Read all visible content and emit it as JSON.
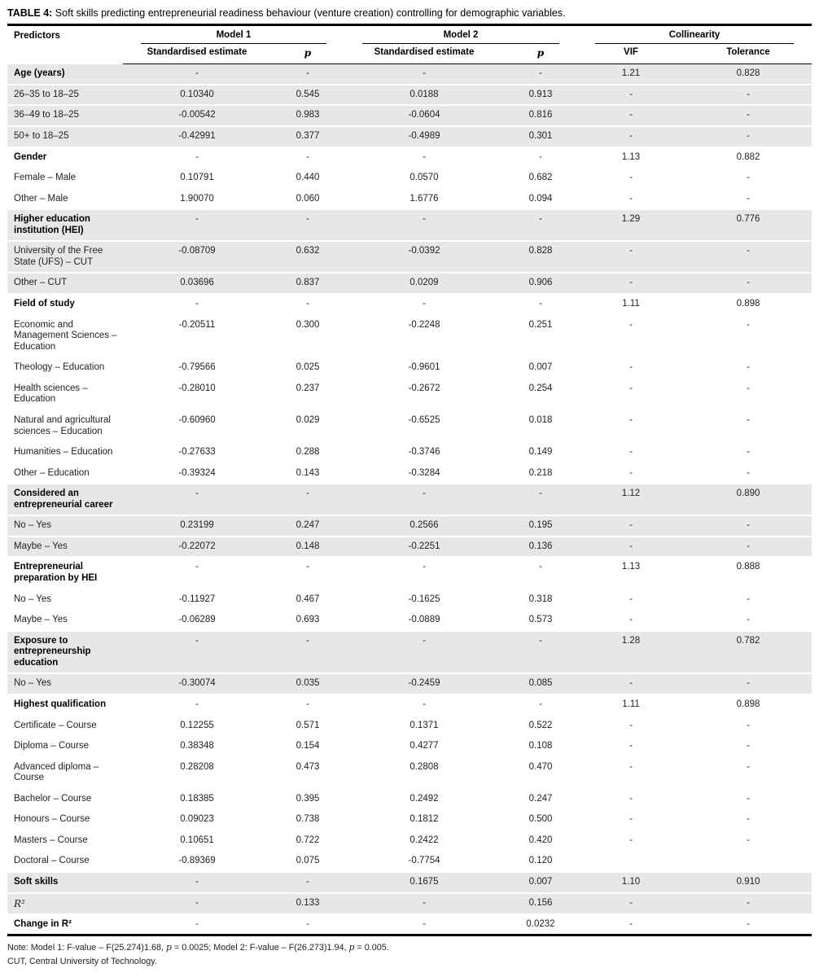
{
  "title": {
    "label": "TABLE 4:",
    "text": " Soft skills predicting entrepreneurial readiness behaviour (venture creation) controlling for demographic variables."
  },
  "table": {
    "predictors_header": "Predictors",
    "groups": {
      "model1": "Model 1",
      "model2": "Model 2",
      "collinearity": "Collinearity"
    },
    "subheaders": {
      "m1_est": "Standardised estimate",
      "m1_p": "p",
      "m2_est": "Standardised estimate",
      "m2_p": "p",
      "vif": "VIF",
      "tolerance": "Tolerance"
    },
    "rows": [
      {
        "predictor": "Age (years)",
        "bold": true,
        "shaded": true,
        "m1_est": "-",
        "m1_p": "-",
        "m2_est": "-",
        "m2_p": "-",
        "vif": "1.21",
        "tol": "0.828"
      },
      {
        "predictor": "26–35 to 18–25",
        "shaded": true,
        "m1_est": "0.10340",
        "m1_p": "0.545",
        "m2_est": "0.0188",
        "m2_p": "0.913",
        "vif": "-",
        "tol": "-"
      },
      {
        "predictor": "36–49 to 18–25",
        "shaded": true,
        "m1_est": "-0.00542",
        "m1_p": "0.983",
        "m2_est": "-0.0604",
        "m2_p": "0.816",
        "vif": "-",
        "tol": "-"
      },
      {
        "predictor": "50+ to 18–25",
        "shaded": true,
        "m1_est": "-0.42991",
        "m1_p": "0.377",
        "m2_est": "-0.4989",
        "m2_p": "0.301",
        "vif": "-",
        "tol": "-"
      },
      {
        "predictor": "Gender",
        "bold": true,
        "m1_est": "-",
        "m1_p": "-",
        "m2_est": "-",
        "m2_p": "-",
        "vif": "1.13",
        "tol": "0.882"
      },
      {
        "predictor": "Female – Male",
        "m1_est": "0.10791",
        "m1_p": "0.440",
        "m2_est": "0.0570",
        "m2_p": "0.682",
        "vif": "-",
        "tol": "-"
      },
      {
        "predictor": "Other – Male",
        "m1_est": "1.90070",
        "m1_p": "0.060",
        "m2_est": "1.6776",
        "m2_p": "0.094",
        "vif": "-",
        "tol": "-"
      },
      {
        "predictor": "Higher education institution (HEI)",
        "bold": true,
        "shaded": true,
        "m1_est": "-",
        "m1_p": "-",
        "m2_est": "-",
        "m2_p": "-",
        "vif": "1.29",
        "tol": "0.776"
      },
      {
        "predictor": "University of the Free State (UFS) – CUT",
        "shaded": true,
        "m1_est": "-0.08709",
        "m1_p": "0.632",
        "m2_est": "-0.0392",
        "m2_p": "0.828",
        "vif": "-",
        "tol": "-"
      },
      {
        "predictor": "Other – CUT",
        "shaded": true,
        "m1_est": "0.03696",
        "m1_p": "0.837",
        "m2_est": "0.0209",
        "m2_p": "0.906",
        "vif": "-",
        "tol": "-"
      },
      {
        "predictor": "Field of study",
        "bold": true,
        "m1_est": "-",
        "m1_p": "-",
        "m2_est": "-",
        "m2_p": "-",
        "vif": "1.11",
        "tol": "0.898"
      },
      {
        "predictor": "Economic and Management Sciences – Education",
        "m1_est": "-0.20511",
        "m1_p": "0.300",
        "m2_est": "-0.2248",
        "m2_p": "0.251",
        "vif": "-",
        "tol": "-"
      },
      {
        "predictor": "Theology – Education",
        "m1_est": "-0.79566",
        "m1_p": "0.025",
        "m2_est": "-0.9601",
        "m2_p": "0.007",
        "vif": "-",
        "tol": "-"
      },
      {
        "predictor": "Health sciences – Education",
        "m1_est": "-0.28010",
        "m1_p": "0.237",
        "m2_est": "-0.2672",
        "m2_p": "0.254",
        "vif": "-",
        "tol": "-"
      },
      {
        "predictor": "Natural and agricultural sciences – Education",
        "m1_est": "-0.60960",
        "m1_p": "0.029",
        "m2_est": "-0.6525",
        "m2_p": "0.018",
        "vif": "-",
        "tol": "-"
      },
      {
        "predictor": "Humanities – Education",
        "m1_est": "-0.27633",
        "m1_p": "0.288",
        "m2_est": "-0.3746",
        "m2_p": "0.149",
        "vif": "-",
        "tol": "-"
      },
      {
        "predictor": "Other – Education",
        "m1_est": "-0.39324",
        "m1_p": "0.143",
        "m2_est": "-0.3284",
        "m2_p": "0.218",
        "vif": "-",
        "tol": "-"
      },
      {
        "predictor": "Considered an entrepreneurial career",
        "bold": true,
        "shaded": true,
        "m1_est": "-",
        "m1_p": "-",
        "m2_est": "-",
        "m2_p": "-",
        "vif": "1.12",
        "tol": "0.890"
      },
      {
        "predictor": "No – Yes",
        "shaded": true,
        "m1_est": "0.23199",
        "m1_p": "0.247",
        "m2_est": "0.2566",
        "m2_p": "0.195",
        "vif": "-",
        "tol": "-"
      },
      {
        "predictor": "Maybe – Yes",
        "shaded": true,
        "m1_est": "-0.22072",
        "m1_p": "0.148",
        "m2_est": "-0.2251",
        "m2_p": "0.136",
        "vif": "-",
        "tol": "-"
      },
      {
        "predictor": "Entrepreneurial preparation by HEI",
        "bold": true,
        "m1_est": "-",
        "m1_p": "-",
        "m2_est": "-",
        "m2_p": "-",
        "vif": "1.13",
        "tol": "0.888"
      },
      {
        "predictor": "No – Yes",
        "m1_est": "-0.11927",
        "m1_p": "0.467",
        "m2_est": "-0.1625",
        "m2_p": "0.318",
        "vif": "-",
        "tol": "-"
      },
      {
        "predictor": "Maybe – Yes",
        "m1_est": "-0.06289",
        "m1_p": "0.693",
        "m2_est": "-0.0889",
        "m2_p": "0.573",
        "vif": "-",
        "tol": "-"
      },
      {
        "predictor": "Exposure to entrepreneurship education",
        "bold": true,
        "shaded": true,
        "m1_est": "-",
        "m1_p": "-",
        "m2_est": "-",
        "m2_p": "-",
        "vif": "1.28",
        "tol": "0.782"
      },
      {
        "predictor": "No – Yes",
        "shaded": true,
        "m1_est": "-0.30074",
        "m1_p": "0.035",
        "m2_est": "-0.2459",
        "m2_p": "0.085",
        "vif": "-",
        "tol": "-"
      },
      {
        "predictor": "Highest qualification",
        "bold": true,
        "m1_est": "-",
        "m1_p": "-",
        "m2_est": "-",
        "m2_p": "-",
        "vif": "1.11",
        "tol": "0.898"
      },
      {
        "predictor": "Certificate – Course",
        "m1_est": "0.12255",
        "m1_p": "0.571",
        "m2_est": "0.1371",
        "m2_p": "0.522",
        "vif": "-",
        "tol": "-"
      },
      {
        "predictor": "Diploma – Course",
        "m1_est": "0.38348",
        "m1_p": "0.154",
        "m2_est": "0.4277",
        "m2_p": "0.108",
        "vif": "-",
        "tol": "-"
      },
      {
        "predictor": "Advanced diploma – Course",
        "m1_est": "0.28208",
        "m1_p": "0.473",
        "m2_est": "0.2808",
        "m2_p": "0.470",
        "vif": "-",
        "tol": "-"
      },
      {
        "predictor": "Bachelor – Course",
        "m1_est": "0.18385",
        "m1_p": "0.395",
        "m2_est": "0.2492",
        "m2_p": "0.247",
        "vif": "-",
        "tol": "-"
      },
      {
        "predictor": "Honours – Course",
        "m1_est": "0.09023",
        "m1_p": "0.738",
        "m2_est": "0.1812",
        "m2_p": "0.500",
        "vif": "-",
        "tol": "-"
      },
      {
        "predictor": "Masters – Course",
        "m1_est": "0.10651",
        "m1_p": "0.722",
        "m2_est": "0.2422",
        "m2_p": "0.420",
        "vif": "-",
        "tol": "-"
      },
      {
        "predictor": "Doctoral – Course",
        "m1_est": "-0.89369",
        "m1_p": "0.075",
        "m2_est": "-0.7754",
        "m2_p": "0.120",
        "vif": "",
        "tol": ""
      },
      {
        "predictor": "Soft skills",
        "bold": true,
        "shaded": true,
        "m1_est": "-",
        "m1_p": "-",
        "m2_est": "0.1675",
        "m2_p": "0.007",
        "vif": "1.10",
        "tol": "0.910"
      },
      {
        "predictor": "R²",
        "italic": true,
        "shaded": true,
        "m1_est": "-",
        "m1_p": "0.133",
        "m2_est": "-",
        "m2_p": "0.156",
        "vif": "-",
        "tol": "-"
      },
      {
        "predictor": "Change in R²",
        "bold": true,
        "m1_est": "-",
        "m1_p": "-",
        "m2_est": "-",
        "m2_p": "0.0232",
        "vif": "-",
        "tol": "-"
      }
    ]
  },
  "notes": [
    [
      {
        "t": "Note: Model 1: F-value – F(25.274)1.68, "
      },
      {
        "t": "p",
        "i": true
      },
      {
        "t": " = 0.0025; Model 2: F-value – F(26.273)1.94, "
      },
      {
        "t": "p",
        "i": true
      },
      {
        "t": " = 0.005."
      }
    ],
    [
      {
        "t": "CUT, Central University of Technology."
      }
    ]
  ]
}
